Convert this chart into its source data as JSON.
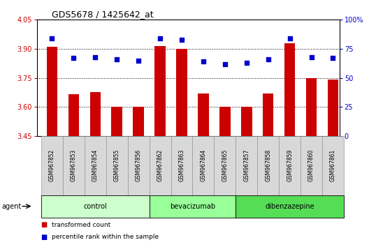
{
  "title": "GDS5678 / 1425642_at",
  "samples": [
    "GSM967852",
    "GSM967853",
    "GSM967854",
    "GSM967855",
    "GSM967856",
    "GSM967862",
    "GSM967863",
    "GSM967864",
    "GSM967865",
    "GSM967857",
    "GSM967858",
    "GSM967859",
    "GSM967860",
    "GSM967861"
  ],
  "transformed_count": [
    3.91,
    3.665,
    3.675,
    3.6,
    3.6,
    3.915,
    3.9,
    3.67,
    3.6,
    3.6,
    3.67,
    3.93,
    3.75,
    3.74
  ],
  "percentile_rank": [
    84,
    67,
    68,
    66,
    65,
    84,
    83,
    64,
    62,
    63,
    66,
    84,
    68,
    67
  ],
  "groups": [
    {
      "label": "control",
      "color": "#ccffcc",
      "start": 0,
      "end": 5
    },
    {
      "label": "bevacizumab",
      "color": "#99ff99",
      "start": 5,
      "end": 9
    },
    {
      "label": "dibenzazepine",
      "color": "#55dd55",
      "start": 9,
      "end": 14
    }
  ],
  "ylim_left": [
    3.45,
    4.05
  ],
  "ylim_right": [
    0,
    100
  ],
  "yticks_left": [
    3.45,
    3.6,
    3.75,
    3.9,
    4.05
  ],
  "yticks_right": [
    0,
    25,
    50,
    75,
    100
  ],
  "ytick_labels_right": [
    "0",
    "25",
    "50",
    "75",
    "100%"
  ],
  "bar_color": "#cc0000",
  "dot_color": "#0000cc",
  "background_color": "#ffffff",
  "grid_color": "#000000",
  "tick_label_left_color": "#cc0000",
  "tick_label_right_color": "#0000cc",
  "legend_bar_label": "transformed count",
  "legend_dot_label": "percentile rank within the sample",
  "agent_label": "agent",
  "bar_width": 0.5,
  "dot_size": 18,
  "xlim": [
    -0.7,
    13.3
  ],
  "grid_yticks": [
    3.6,
    3.75,
    3.9
  ]
}
